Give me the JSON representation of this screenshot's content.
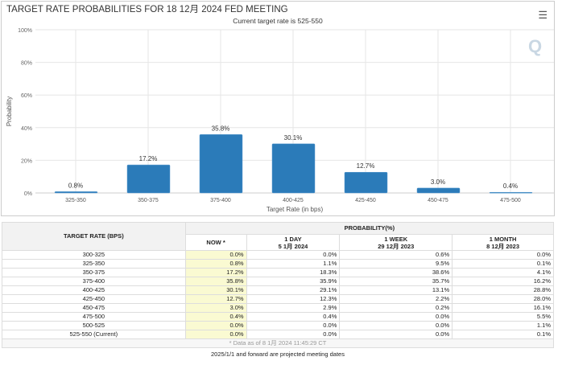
{
  "chart_data": {
    "type": "bar",
    "title": "TARGET RATE PROBABILITIES FOR 18 12月 2024 FED MEETING",
    "subtitle": "Current target rate is 525-550",
    "categories": [
      "325-350",
      "350-375",
      "375-400",
      "400-425",
      "425-450",
      "450-475",
      "475-500"
    ],
    "values": [
      0.8,
      17.2,
      35.8,
      30.1,
      12.7,
      3.0,
      0.4
    ],
    "data_labels": [
      "0.8%",
      "17.2%",
      "35.8%",
      "30.1%",
      "12.7%",
      "3.0%",
      "0.4%"
    ],
    "xlabel": "Target Rate (in bps)",
    "ylabel": "Probability",
    "ylim": [
      0,
      100
    ],
    "yticks": [
      "0%",
      "20%",
      "40%",
      "60%",
      "80%",
      "100%"
    ],
    "grid": true,
    "bar_color": "#2b7bb9"
  },
  "menu_icon": "hamburger-icon",
  "logo_text": "Q",
  "table": {
    "rate_header": "TARGET RATE (BPS)",
    "prob_header": "PROBABILITY(%)",
    "columns": [
      {
        "label": "NOW *",
        "sub": ""
      },
      {
        "label": "1 DAY",
        "sub": "5 1月 2024"
      },
      {
        "label": "1 WEEK",
        "sub": "29 12月 2023"
      },
      {
        "label": "1 MONTH",
        "sub": "8 12月 2023"
      }
    ],
    "rows": [
      [
        "300-325",
        "0.0%",
        "0.0%",
        "0.6%",
        "0.0%"
      ],
      [
        "325-350",
        "0.8%",
        "1.1%",
        "9.5%",
        "0.1%"
      ],
      [
        "350-375",
        "17.2%",
        "18.3%",
        "38.6%",
        "4.1%"
      ],
      [
        "375-400",
        "35.8%",
        "35.9%",
        "35.7%",
        "16.2%"
      ],
      [
        "400-425",
        "30.1%",
        "29.1%",
        "13.1%",
        "28.8%"
      ],
      [
        "425-450",
        "12.7%",
        "12.3%",
        "2.2%",
        "28.0%"
      ],
      [
        "450-475",
        "3.0%",
        "2.9%",
        "0.2%",
        "16.1%"
      ],
      [
        "475-500",
        "0.4%",
        "0.4%",
        "0.0%",
        "5.5%"
      ],
      [
        "500-525",
        "0.0%",
        "0.0%",
        "0.0%",
        "1.1%"
      ],
      [
        "525-550 (Current)",
        "0.0%",
        "0.0%",
        "0.0%",
        "0.1%"
      ]
    ],
    "footnote": "* Data as of 8 1月 2024 11:45:29 CT"
  },
  "note": "2025/1/1 and forward are projected meeting dates"
}
